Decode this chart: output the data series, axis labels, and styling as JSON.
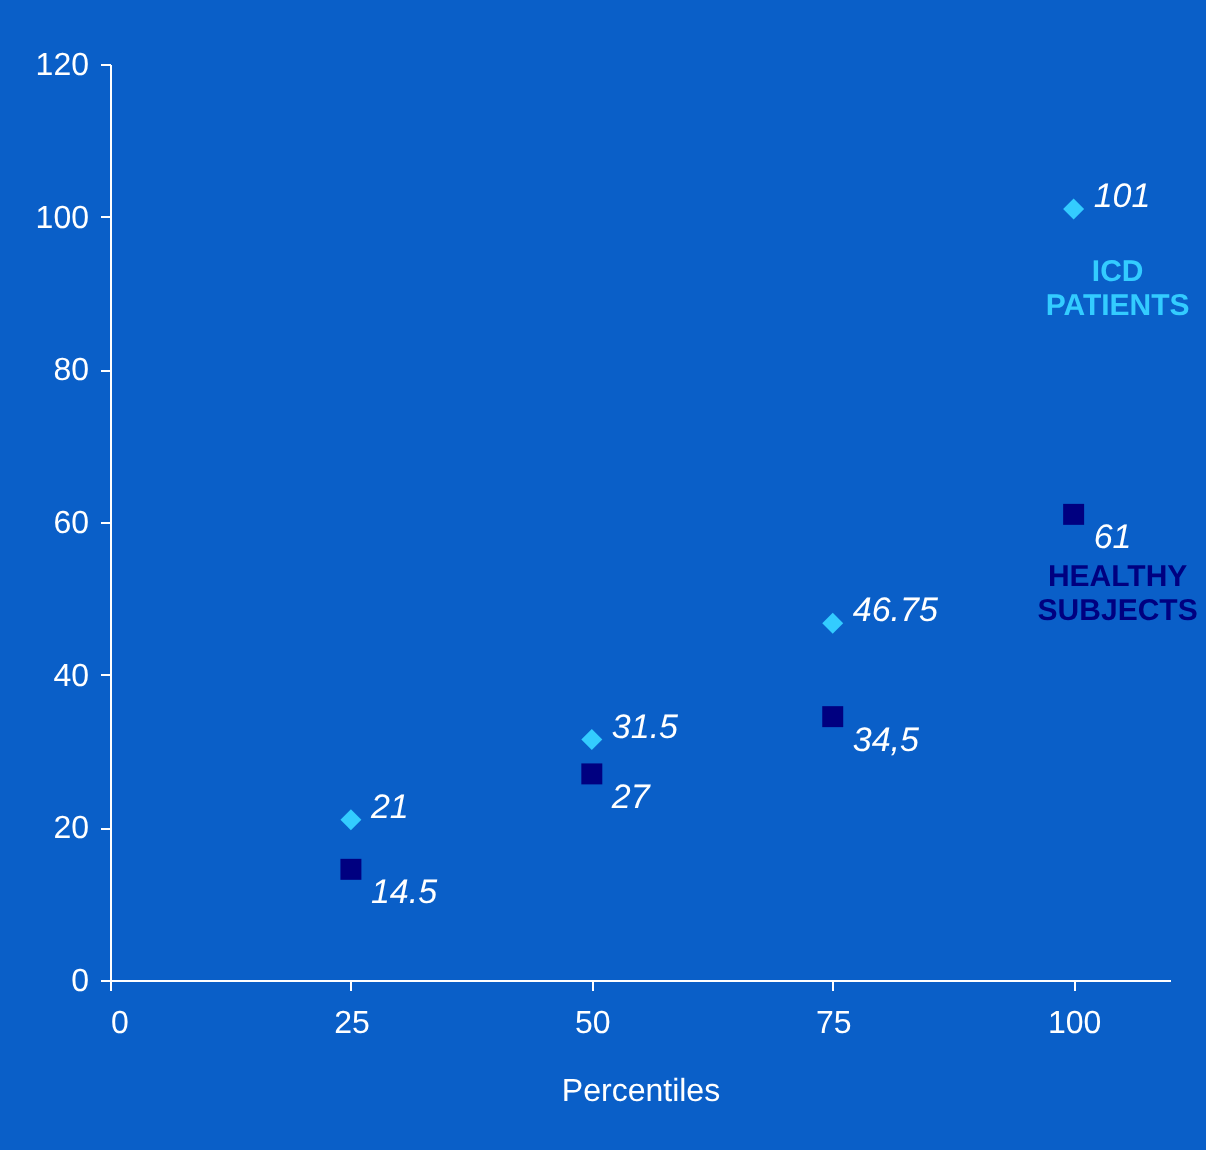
{
  "chart_data": {
    "type": "scatter",
    "xlabel": "Percentiles",
    "x": [
      25,
      50,
      75,
      100
    ],
    "xlim": [
      0,
      110
    ],
    "xticks": [
      0,
      25,
      50,
      75,
      100
    ],
    "ylim": [
      0,
      120
    ],
    "yticks": [
      0,
      20,
      40,
      60,
      80,
      100,
      120
    ],
    "grid": false,
    "series": [
      {
        "name": "ICD PATIENTS",
        "color": "#33ccff",
        "marker": "diamond",
        "values": [
          21,
          31.5,
          46.75,
          101
        ],
        "value_labels": [
          "21",
          "31.5",
          "46.75",
          "101"
        ]
      },
      {
        "name": "HEALTHY SUBJECTS",
        "color": "#000080",
        "marker": "square",
        "values": [
          14.5,
          27,
          34.5,
          61
        ],
        "value_labels": [
          "14.5",
          "27",
          "34,5",
          "61"
        ]
      }
    ]
  }
}
